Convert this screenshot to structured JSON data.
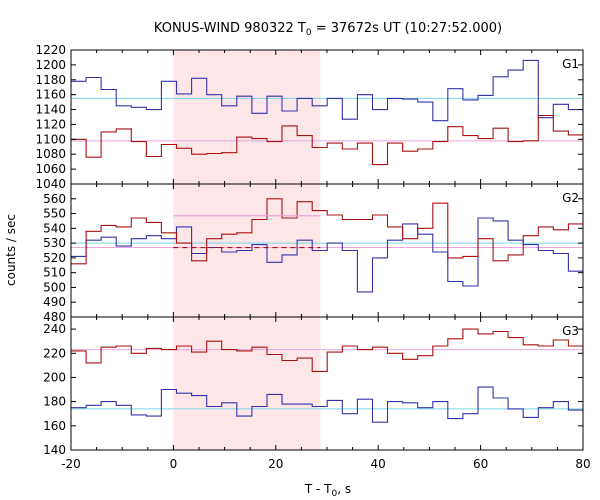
{
  "chart_data": {
    "type": "line",
    "title": {
      "main": "KONUS-WIND 980322 T",
      "sub": "0",
      "rest": " = 37672s UT (10:27:52.000)"
    },
    "xlabel": {
      "main": "T - T",
      "sub": "0",
      "rest": ", s"
    },
    "ylabel": "counts / sec",
    "xlim": [
      -20,
      80
    ],
    "xticks": [
      "-20",
      "0",
      "20",
      "40",
      "60",
      "80"
    ],
    "highlight_interval": [
      0,
      28.7
    ],
    "colors": {
      "blue": "#3333aa",
      "red": "#aa1111",
      "cyan": "#7fd4e8",
      "pink": "#e9a6dd",
      "shade": "#fde6e8"
    },
    "panels": [
      {
        "label": "G1",
        "ylim": [
          1040,
          1220
        ],
        "yticks": [
          "1040",
          "1060",
          "1080",
          "1100",
          "1120",
          "1140",
          "1160",
          "1180",
          "1200",
          "1220"
        ],
        "background": {
          "blue": 1155,
          "red": 1098
        },
        "series": [
          {
            "name": "blue",
            "x0": -20,
            "dx": 2.944,
            "values": [
              1178,
              1183,
              1167,
              1145,
              1143,
              1140,
              1178,
              1161,
              1182,
              1160,
              1145,
              1158,
              1135,
              1158,
              1138,
              1155,
              1145,
              1155,
              1127,
              1160,
              1140,
              1155,
              1154,
              1150,
              1125,
              1168,
              1153,
              1159,
              1184,
              1193,
              1206,
              1129,
              1147,
              1140,
              1126,
              1138,
              1147,
              1151,
              1145,
              1163,
              1157,
              1152,
              1158,
              1136,
              1157,
              1182,
              1163,
              1192,
              1168,
              1183,
              1164,
              1170,
              1183,
              1152,
              1178
            ]
          },
          {
            "name": "red",
            "x0": -20,
            "dx": 2.944,
            "values": [
              1100,
              1076,
              1110,
              1114,
              1097,
              1077,
              1093,
              1088,
              1080,
              1081,
              1082,
              1103,
              1101,
              1097,
              1118,
              1105,
              1089,
              1095,
              1087,
              1095,
              1066,
              1095,
              1084,
              1087,
              1097,
              1117,
              1105,
              1101,
              1115,
              1097,
              1098,
              1132,
              1111,
              1106,
              1122,
              1103,
              1113,
              1107,
              1079,
              1105,
              1093,
              1103,
              1115,
              1102,
              1120,
              1123,
              1111,
              1101,
              1113,
              1117,
              1098,
              1102,
              1110,
              1100,
              1105
            ]
          }
        ]
      },
      {
        "label": "G2",
        "ylim": [
          480,
          570
        ],
        "yticks": [
          "480",
          "490",
          "500",
          "510",
          "520",
          "530",
          "540",
          "550",
          "560"
        ],
        "background": {
          "blue": 530,
          "red": 527,
          "pink": 548.5
        },
        "mean_line": {
          "x": [
            0,
            28.7
          ],
          "y": 527
        },
        "series": [
          {
            "name": "blue",
            "x0": -20,
            "dx": 2.944,
            "values": [
              521,
              532,
              534,
              528,
              533,
              535,
              533,
              541,
              523,
              527,
              524,
              525,
              529,
              517,
              522,
              532,
              525,
              530,
              525,
              497,
              520,
              532,
              543,
              536,
              524,
              504,
              501,
              547,
              545,
              532,
              529,
              525,
              523,
              511,
              524,
              522,
              505,
              503,
              519,
              524,
              531,
              518,
              542,
              528,
              529,
              531,
              523,
              536,
              530,
              529,
              532,
              528,
              541,
              532,
              531
            ]
          },
          {
            "name": "red",
            "x0": -20,
            "dx": 2.944,
            "values": [
              516,
              538,
              542,
              541,
              547,
              544,
              537,
              530,
              518,
              533,
              536,
              537,
              546,
              560,
              547,
              558,
              552,
              549,
              546,
              546,
              549,
              541,
              533,
              540,
              557,
              520,
              521,
              533,
              518,
              522,
              535,
              541,
              539,
              543,
              540,
              528,
              525,
              519,
              516,
              512,
              514,
              520,
              521,
              527,
              531,
              538,
              519,
              531,
              532,
              528,
              525,
              526,
              531,
              529,
              532
            ]
          }
        ]
      },
      {
        "label": "G3",
        "ylim": [
          140,
          250
        ],
        "yticks": [
          "140",
          "160",
          "180",
          "200",
          "220",
          "240"
        ],
        "background": {
          "blue": 174,
          "red": 223
        },
        "series": [
          {
            "name": "blue",
            "x0": -20,
            "dx": 2.944,
            "values": [
              175,
              177,
              180,
              177,
              169,
              168,
              190,
              187,
              185,
              176,
              179,
              168,
              176,
              186,
              178,
              178,
              176,
              181,
              170,
              182,
              163,
              180,
              179,
              175,
              180,
              166,
              170,
              192,
              183,
              174,
              167,
              175,
              180,
              173,
              179,
              158,
              164,
              176,
              185,
              180,
              167,
              175,
              175,
              170,
              181,
              173,
              177,
              175,
              178,
              162,
              173,
              171,
              181,
              165,
              176
            ]
          },
          {
            "name": "red",
            "x0": -20,
            "dx": 2.944,
            "values": [
              222,
              212,
              225,
              226,
              220,
              224,
              223,
              226,
              221,
              230,
              223,
              222,
              225,
              219,
              214,
              216,
              205,
              221,
              226,
              223,
              225,
              220,
              215,
              218,
              226,
              232,
              240,
              236,
              238,
              233,
              227,
              226,
              231,
              226,
              223,
              230,
              220,
              224,
              228,
              230,
              226,
              224,
              225,
              219,
              216,
              212,
              225,
              225,
              226,
              228,
              232,
              218,
              225,
              229,
              223
            ]
          }
        ]
      }
    ]
  }
}
